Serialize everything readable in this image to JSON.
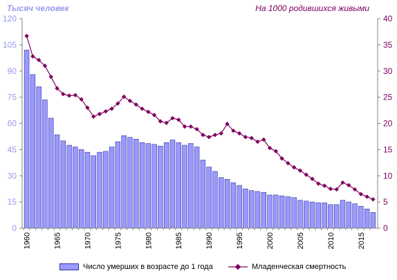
{
  "titles": {
    "left": "Тысяч человек",
    "right": "На 1000 родившихся живыми"
  },
  "colors": {
    "bar_fill": "#9999ff",
    "bar_stroke": "#333399",
    "line": "#800060",
    "left_axis": "#9999ee",
    "right_axis": "#800060"
  },
  "legend": {
    "bars": "Число  умерших в возрасте до 1 года",
    "line": "Младенческая  смертность"
  },
  "chart_data": {
    "type": "bar",
    "x": [
      1960,
      1961,
      1962,
      1963,
      1964,
      1965,
      1966,
      1967,
      1968,
      1969,
      1970,
      1971,
      1972,
      1973,
      1974,
      1975,
      1976,
      1977,
      1978,
      1979,
      1980,
      1981,
      1982,
      1983,
      1984,
      1985,
      1986,
      1987,
      1988,
      1989,
      1990,
      1991,
      1992,
      1993,
      1994,
      1995,
      1996,
      1997,
      1998,
      1999,
      2000,
      2001,
      2002,
      2003,
      2004,
      2005,
      2006,
      2007,
      2008,
      2009,
      2010,
      2011,
      2012,
      2013,
      2014,
      2015,
      2016,
      2017
    ],
    "x_tick_labels": [
      "1960",
      "1965",
      "1970",
      "1975",
      "1980",
      "1985",
      "1990",
      "1995",
      "2000",
      "2005",
      "2010",
      "2015"
    ],
    "series": [
      {
        "name": "Число  умерших в возрасте до 1 года",
        "type": "bar",
        "axis": "left",
        "values": [
          102,
          88,
          81,
          73.5,
          63,
          53.5,
          50,
          47.5,
          46.5,
          45,
          43.5,
          41.5,
          43.5,
          44,
          46.5,
          49.5,
          53,
          52,
          51,
          49,
          48.5,
          48,
          47,
          49,
          50.5,
          49,
          47.5,
          48.5,
          46.5,
          39,
          35,
          32.5,
          29,
          28,
          26,
          24.5,
          22.5,
          21.5,
          21,
          20.5,
          19,
          19,
          18.5,
          18,
          17.5,
          16,
          15.5,
          15,
          14.5,
          14.5,
          13.5,
          13.5,
          16,
          15,
          14,
          12.5,
          11,
          9
        ]
      },
      {
        "name": "Младенческая  смертность",
        "type": "line",
        "axis": "right",
        "values": [
          36.7,
          32.8,
          32.1,
          31,
          28.9,
          26.7,
          25.6,
          25.3,
          25.4,
          24.6,
          23,
          21.3,
          21.8,
          22.3,
          22.8,
          23.8,
          25.1,
          24.3,
          23.6,
          22.8,
          22.2,
          21.6,
          20.4,
          20.1,
          21,
          20.7,
          19.4,
          19.4,
          18.9,
          17.8,
          17.4,
          17.8,
          18.1,
          19.9,
          18.6,
          18.1,
          17.4,
          17.2,
          16.5,
          16.9,
          15.3,
          14.7,
          13.3,
          12.4,
          11.6,
          11,
          10.2,
          9.4,
          8.5,
          8.1,
          7.5,
          7.4,
          8.7,
          8.2,
          7.4,
          6.5,
          6,
          5.5
        ]
      }
    ],
    "y_left": {
      "range": [
        0,
        120
      ],
      "ticks": [
        "0",
        "15",
        "30",
        "45",
        "60",
        "75",
        "90",
        "105",
        "120"
      ]
    },
    "y_right": {
      "range": [
        0,
        40
      ],
      "ticks": [
        "0",
        "5",
        "10",
        "15",
        "20",
        "25",
        "30",
        "35",
        "40"
      ]
    },
    "grid": false,
    "legend_position": "bottom"
  }
}
